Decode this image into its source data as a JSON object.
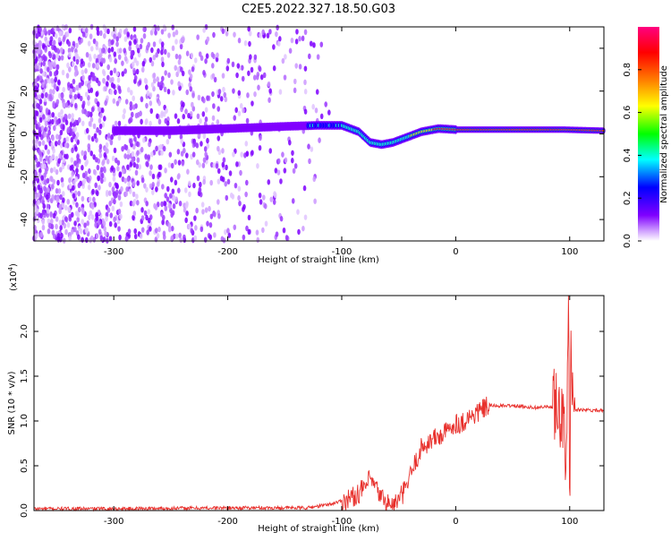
{
  "title": "C2E5.2022.327.18.50.G03",
  "chart_data": [
    {
      "type": "heatmap",
      "title": "C2E5.2022.327.18.50.G03",
      "xlabel": "Height of straight line (km)",
      "ylabel": "Frequency (Hz)",
      "xlim": [
        -370,
        130
      ],
      "ylim": [
        -50,
        50
      ],
      "x_ticks": [
        -300,
        -200,
        -100,
        0,
        100
      ],
      "x_tick_labels": [
        "-300",
        "-200",
        "-100",
        "0",
        "100"
      ],
      "y_ticks": [
        -40,
        -20,
        0,
        20,
        40
      ],
      "y_tick_labels": [
        "-40",
        "-20",
        "0",
        "20",
        "40"
      ],
      "colorbar": {
        "label": "Normalized spectral amplitude",
        "range": [
          0,
          1
        ],
        "ticks": [
          0.0,
          0.2,
          0.4,
          0.6,
          0.8
        ],
        "tick_labels": [
          "0.0",
          "0.2",
          "0.4",
          "0.6",
          "0.8"
        ],
        "colors": [
          "#ffffff",
          "#cc99ff",
          "#7f00ff",
          "#0000ff",
          "#00ffff",
          "#00ff00",
          "#ffff00",
          "#ff7f00",
          "#ff0000",
          "#ff0080"
        ]
      },
      "ridge": [
        {
          "x": -300,
          "y": 1.5
        },
        {
          "x": -250,
          "y": 1.5
        },
        {
          "x": -200,
          "y": 2.5
        },
        {
          "x": -150,
          "y": 3.5
        },
        {
          "x": -120,
          "y": 4
        },
        {
          "x": -100,
          "y": 4
        },
        {
          "x": -85,
          "y": 1
        },
        {
          "x": -75,
          "y": -4
        },
        {
          "x": -65,
          "y": -5
        },
        {
          "x": -55,
          "y": -4
        },
        {
          "x": -45,
          "y": -2
        },
        {
          "x": -30,
          "y": 1
        },
        {
          "x": -15,
          "y": 2.5
        },
        {
          "x": 0,
          "y": 2
        },
        {
          "x": 50,
          "y": 2
        },
        {
          "x": 95,
          "y": 2
        },
        {
          "x": 130,
          "y": 1.5
        }
      ],
      "grid": false
    },
    {
      "type": "line",
      "xlabel": "Height of straight line (km)",
      "ylabel": "SNR (10 * v/v)",
      "yscale_label": "(x10",
      "yscale_exp": "4",
      "yscale_close": ")",
      "xlim": [
        -370,
        130
      ],
      "ylim": [
        0,
        2.4
      ],
      "x_ticks": [
        -300,
        -200,
        -100,
        0,
        100
      ],
      "x_tick_labels": [
        "-300",
        "-200",
        "-100",
        "0",
        "100"
      ],
      "y_ticks": [
        0.0,
        0.5,
        1.0,
        1.5,
        2.0
      ],
      "y_tick_labels": [
        "0.0",
        "0.5",
        "1.0",
        "1.5",
        "2.0"
      ],
      "series": [
        {
          "color": "#e8302c",
          "x": [
            -370,
            -300,
            -200,
            -130,
            -110,
            -90,
            -80,
            -75,
            -68,
            -62,
            -55,
            -50,
            -45,
            -40,
            -35,
            -30,
            -25,
            -20,
            -15,
            -10,
            -5,
            0,
            5,
            10,
            15,
            20,
            25,
            30,
            40,
            50,
            60,
            70,
            80,
            85,
            88,
            92,
            95,
            97,
            99,
            100,
            101,
            103,
            105,
            110,
            120,
            130
          ],
          "y": [
            0.02,
            0.02,
            0.03,
            0.03,
            0.07,
            0.15,
            0.25,
            0.35,
            0.2,
            0.1,
            0.05,
            0.12,
            0.22,
            0.38,
            0.55,
            0.7,
            0.75,
            0.8,
            0.82,
            0.86,
            0.92,
            0.98,
            0.97,
            1.03,
            1.06,
            1.1,
            1.14,
            1.17,
            1.17,
            1.17,
            1.16,
            1.15,
            1.16,
            1.15,
            1.2,
            0.85,
            1.3,
            0.3,
            2.35,
            0.2,
            1.75,
            1.0,
            1.12,
            1.13,
            1.12,
            1.12
          ]
        }
      ],
      "grid": false
    }
  ]
}
